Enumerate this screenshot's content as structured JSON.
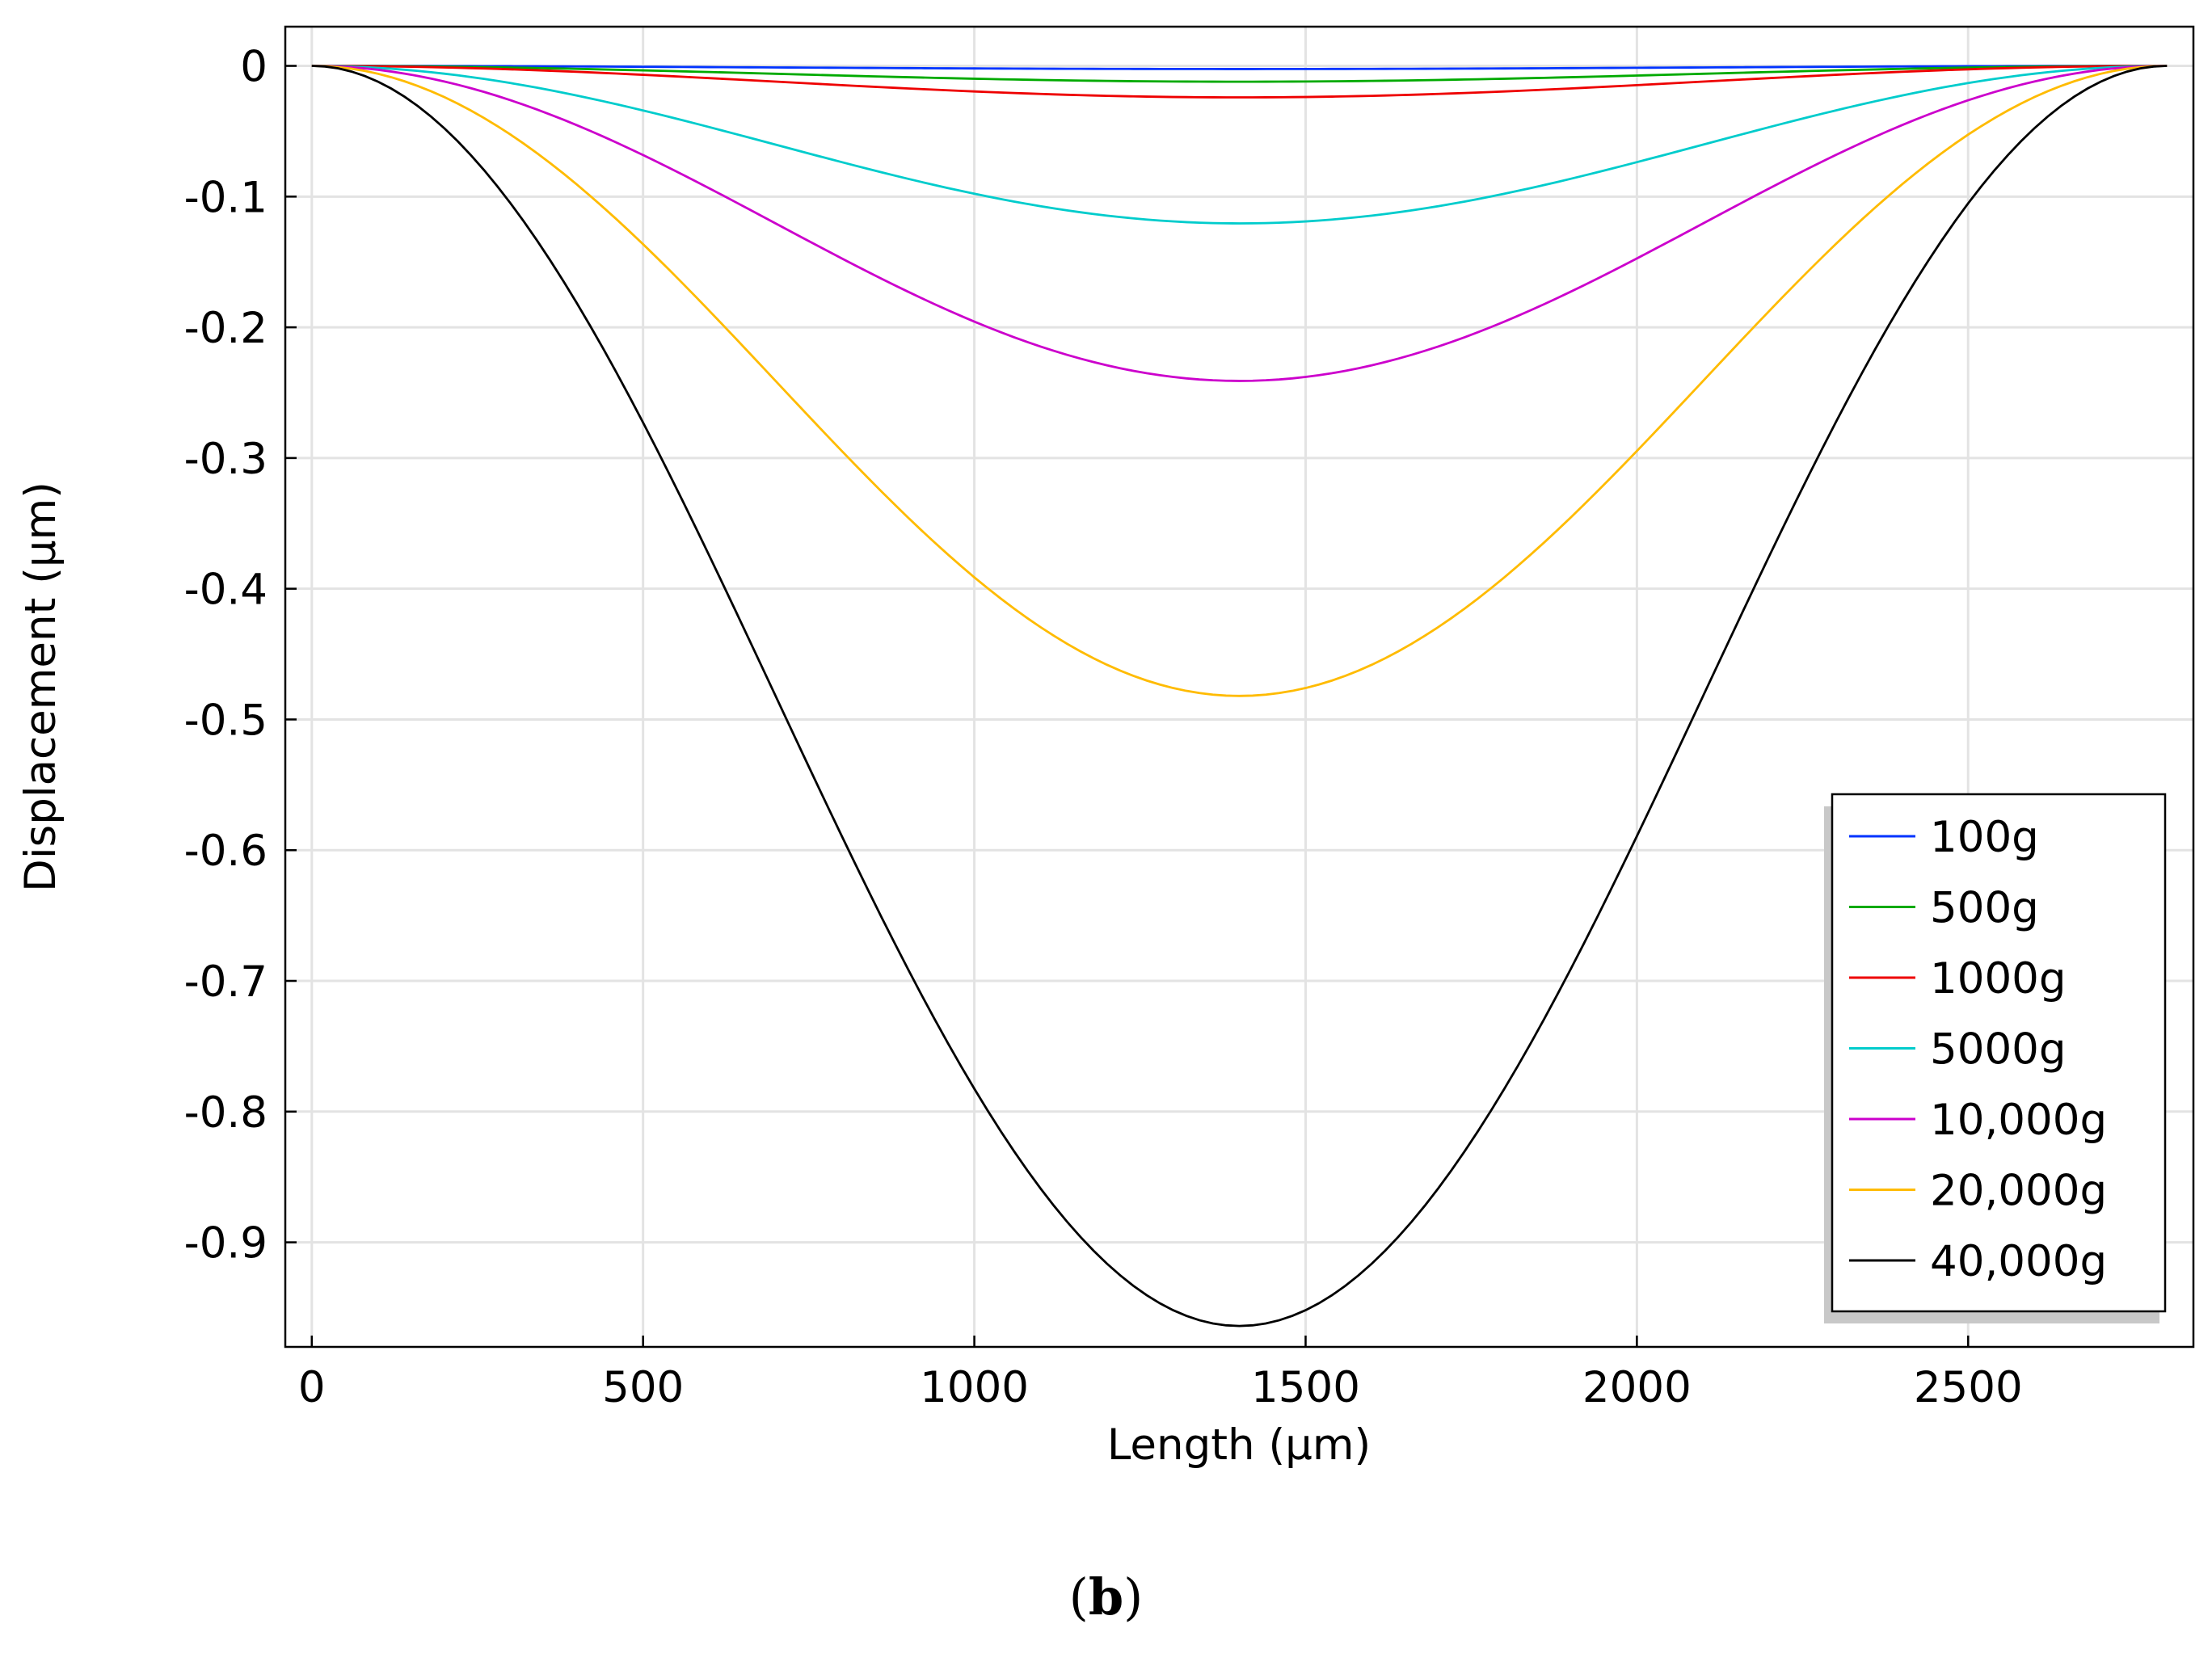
{
  "chart_data": {
    "type": "line",
    "title": "",
    "xlabel": "Length (µm)",
    "ylabel": "Displacement (µm)",
    "xlim": [
      -40,
      2840
    ],
    "ylim": [
      -0.98,
      0.03
    ],
    "grid": true,
    "x_ticks": [
      0,
      500,
      1000,
      1500,
      2000,
      2500
    ],
    "x_tick_labels": [
      "0",
      "500",
      "1000",
      "1500",
      "2000",
      "2500"
    ],
    "y_ticks": [
      0,
      -0.1,
      -0.2,
      -0.3,
      -0.4,
      -0.5,
      -0.6,
      -0.7,
      -0.8,
      -0.9
    ],
    "y_tick_labels": [
      "0",
      "-0.1",
      "-0.2",
      "-0.3",
      "-0.4",
      "-0.5",
      "-0.6",
      "-0.7",
      "-0.8",
      "-0.9"
    ],
    "x_range": [
      0,
      2800
    ],
    "curve_shape": "clamped-clamped beam, zero displacement at both ends, maximum deflection at mid-length",
    "legend_position": "right-lower",
    "series": [
      {
        "name": "100g",
        "color": "#0033ff",
        "min_x": 1400,
        "min_y": -0.0024
      },
      {
        "name": "500g",
        "color": "#00aa00",
        "min_x": 1400,
        "min_y": -0.0121
      },
      {
        "name": "1000g",
        "color": "#ee0000",
        "min_x": 1400,
        "min_y": -0.0241
      },
      {
        "name": "5000g",
        "color": "#00cccc",
        "min_x": 1400,
        "min_y": -0.1205
      },
      {
        "name": "10,000g",
        "color": "#cc00cc",
        "min_x": 1400,
        "min_y": -0.241
      },
      {
        "name": "20,000g",
        "color": "#ffbb00",
        "min_x": 1400,
        "min_y": -0.482
      },
      {
        "name": "40,000g",
        "color": "#000000",
        "min_x": 1400,
        "min_y": -0.964
      }
    ]
  },
  "caption": {
    "open": "(",
    "letter": "b",
    "close": ")"
  }
}
